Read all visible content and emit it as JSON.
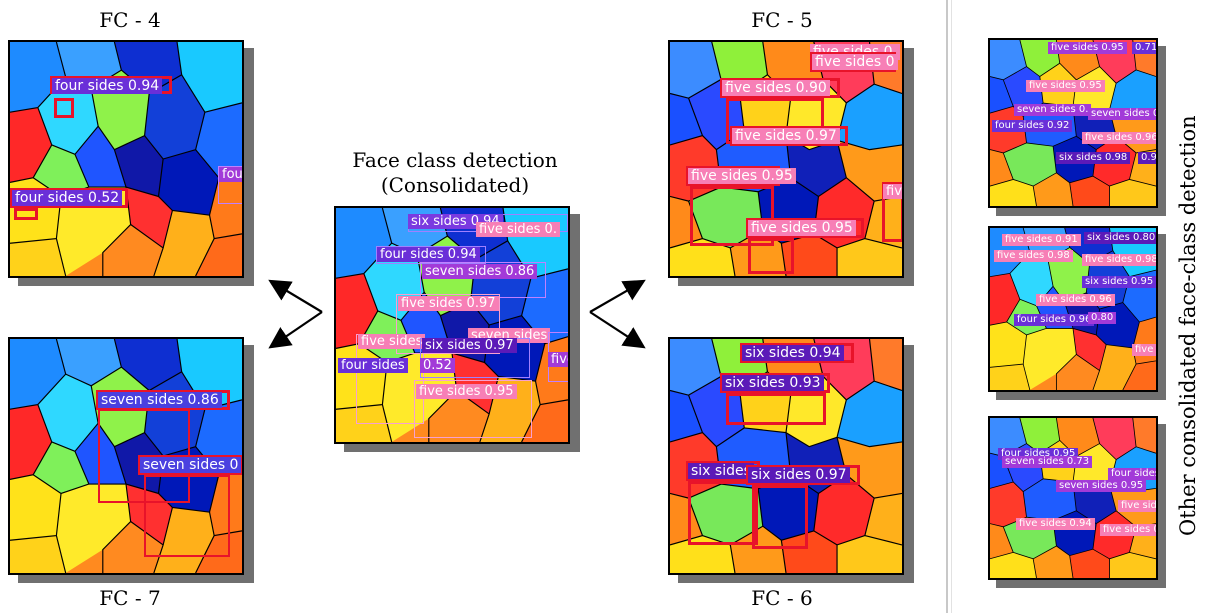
{
  "panels": {
    "fc4": {
      "label": "FC - 4",
      "detections": [
        "four sides 0.94",
        "four sides 0.52",
        "fou"
      ]
    },
    "fc5": {
      "label": "FC - 5",
      "detections": [
        "five sides 0.",
        "five sides 0",
        "five sides 0.90",
        "five sides 0.97",
        "five sides 0.95",
        "five sides 0.95",
        "five"
      ]
    },
    "fc7": {
      "label": "FC - 7",
      "detections": [
        "seven sides 0.86",
        "seven sides 0"
      ]
    },
    "fc6": {
      "label": "FC - 6",
      "detections": [
        "six sides 0.94",
        "six sides 0.93",
        "six sides",
        "six sides 0.97"
      ]
    },
    "consolidated": {
      "title_line1": "Face class detection",
      "title_line2": "(Consolidated)",
      "detections": [
        "six sides 0.94",
        "five sides 0.",
        "four sides 0.94",
        "seven sides 0.86",
        "five sides 0.97",
        "seven sides",
        "five sides",
        "six sides 0.97",
        "four sides",
        "0.52",
        "five sides 0.95",
        "five"
      ]
    }
  },
  "side_panels": {
    "label": "Other consolidated face-class detection",
    "top": [
      "five sides 0.95",
      "0.71",
      "five sides 0.95",
      "seven sides 0.",
      "seven sides 0.",
      "four sides 0.92",
      "five sides 0.96",
      "six sides 0.98",
      "0.9"
    ],
    "middle": [
      "five sides 0.91",
      "six sides 0.80",
      "five sides 0.98",
      "five sides 0.98",
      "six sides 0.95",
      "five sides 0.96",
      "four sides 0.96",
      "0.80",
      "five"
    ],
    "bottom": [
      "four sides 0.95",
      "seven sides 0.73",
      "four sides",
      "seven sides 0.95",
      "five sides",
      "five sides 0.94",
      "five sides 0"
    ]
  },
  "colors": {
    "fc4_box": "#e8132a",
    "fc4_label": "#6a2fd8",
    "fc5_box": "#e8132a",
    "fc5_label": "#f77fb6",
    "fc6_label": "#5b1ab8",
    "fc7_label": "#4a40e0",
    "mixed_label": "#a23ad8"
  }
}
